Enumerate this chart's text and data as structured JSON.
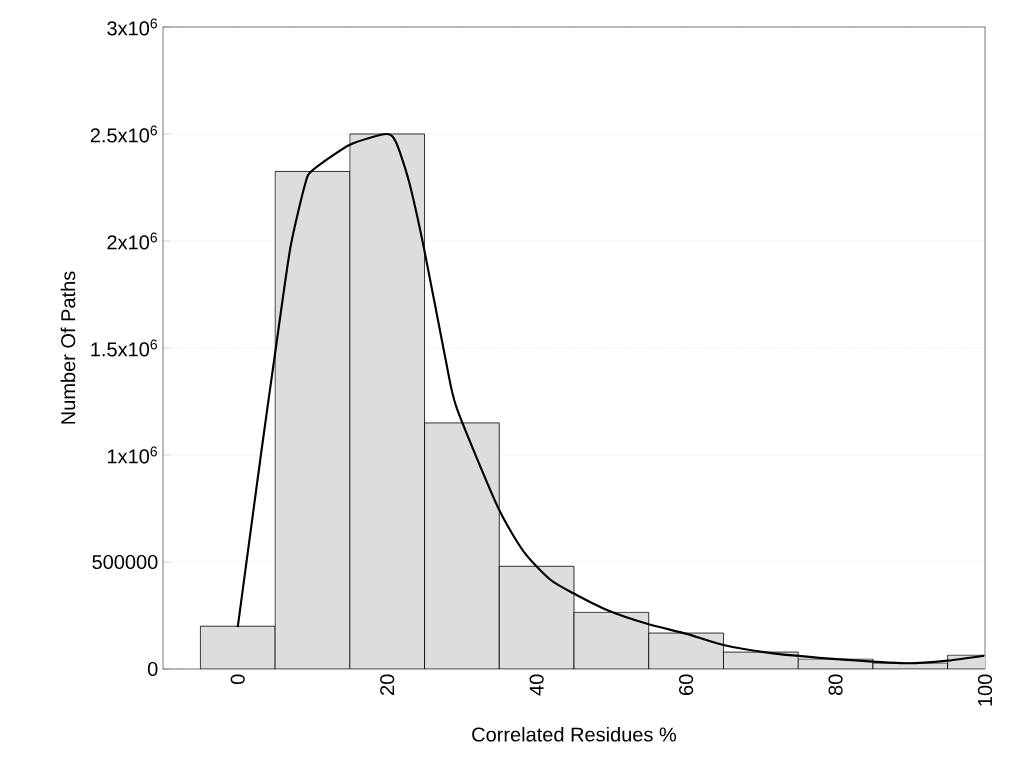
{
  "chart_data": {
    "type": "histogram",
    "xlabel": "Correlated Residues %",
    "ylabel": "Number Of Paths",
    "bins": [
      -5,
      5,
      15,
      25,
      35,
      45,
      55,
      65,
      75,
      85,
      95,
      105
    ],
    "values": [
      200000,
      2325000,
      2500000,
      1150000,
      480000,
      265000,
      168000,
      79000,
      47000,
      28000,
      65000
    ],
    "color": "#dddddd",
    "series": [
      {
        "type": "line",
        "color": "#000000",
        "x": [
          0,
          3.1,
          5.1,
          7.05,
          9.05,
          10,
          15,
          19.9,
          21.2,
          22.9,
          24.9,
          27.8,
          29.3,
          34.8,
          38.3,
          41.8,
          44.9,
          49.4,
          54.9,
          60.1,
          65,
          71.7,
          80.6,
          89.5,
          95,
          99.9
        ],
        "values": [
          196000,
          1000000,
          1500000,
          1970000,
          2270000,
          2330000,
          2450000,
          2500000,
          2460000,
          2280000,
          1970000,
          1450000,
          1220000,
          757000,
          547000,
          418000,
          354000,
          276000,
          210000,
          164000,
          112000,
          73000,
          45000,
          27000,
          39000,
          62000
        ]
      }
    ],
    "xlim": [
      -10,
      100
    ],
    "ylim": [
      0,
      3000000
    ],
    "xticks": [
      0,
      20,
      40,
      60,
      80,
      100
    ],
    "yticks": [
      0,
      500000,
      {
        "value": 1000000,
        "label": "1x10$^{6}$"
      },
      {
        "value": 1500000,
        "label": "1.5x10$^{6}$"
      },
      {
        "value": 2000000,
        "label": "2x10$^{6}$"
      },
      {
        "value": 2500000,
        "label": "2.5x10$^{6}$"
      },
      {
        "value": 3000000,
        "label": "3x10$^{6}$"
      }
    ],
    "grid": "y"
  }
}
